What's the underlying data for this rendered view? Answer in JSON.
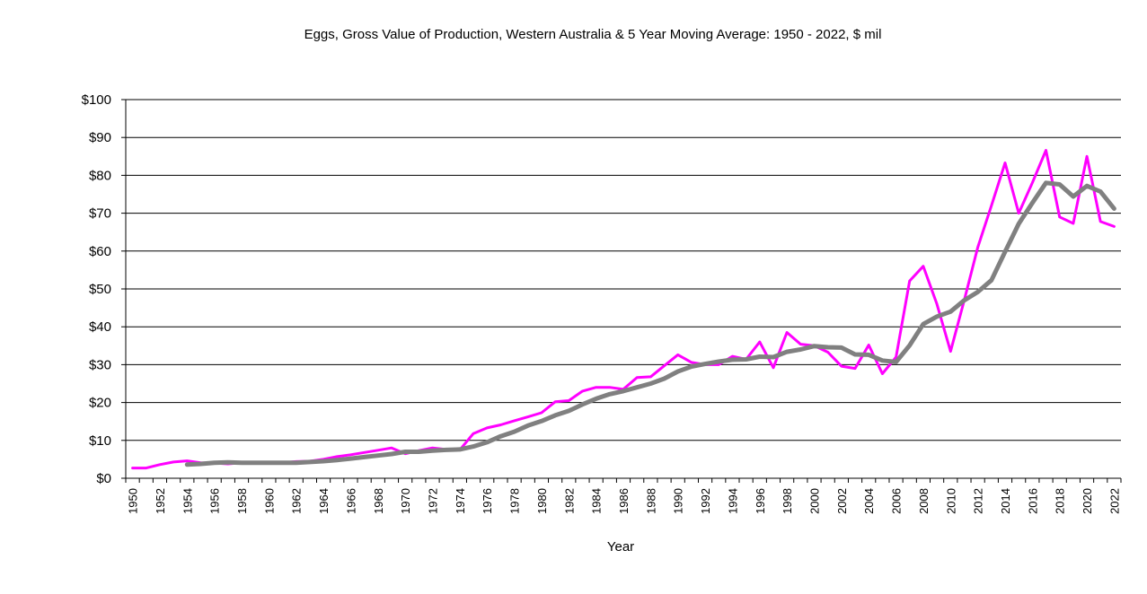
{
  "chart_data": {
    "type": "line",
    "title": "Eggs, Gross Value of Production, Western Australia & 5 Year Moving Average: 1950 - 2022, $ mil",
    "xlabel": "Year",
    "ylabel": "",
    "ylim": [
      0,
      100
    ],
    "yticks": [
      0,
      10,
      20,
      30,
      40,
      50,
      60,
      70,
      80,
      90,
      100
    ],
    "ytick_labels": [
      "$0",
      "$10",
      "$20",
      "$30",
      "$40",
      "$50",
      "$60",
      "$70",
      "$80",
      "$90",
      "$100"
    ],
    "xlim": [
      1950,
      2022
    ],
    "xtick_labels": [
      "1950",
      "1952",
      "1954",
      "1956",
      "1958",
      "1960",
      "1962",
      "1964",
      "1966",
      "1968",
      "1970",
      "1972",
      "1974",
      "1976",
      "1978",
      "1980",
      "1982",
      "1984",
      "1986",
      "1988",
      "1990",
      "1992",
      "1994",
      "1996",
      "1998",
      "2000",
      "2002",
      "2004",
      "2006",
      "2008",
      "2010",
      "2012",
      "2014",
      "2016",
      "2018",
      "2020",
      "2022"
    ],
    "grid": true,
    "legend": "none",
    "series": [
      {
        "name": "Gross Value of Production",
        "color": "#ff00ff",
        "x": [
          1950,
          1951,
          1952,
          1953,
          1954,
          1955,
          1956,
          1957,
          1958,
          1959,
          1960,
          1961,
          1962,
          1963,
          1964,
          1965,
          1966,
          1967,
          1968,
          1969,
          1970,
          1971,
          1972,
          1973,
          1974,
          1975,
          1976,
          1977,
          1978,
          1979,
          1980,
          1981,
          1982,
          1983,
          1984,
          1985,
          1986,
          1987,
          1988,
          1989,
          1990,
          1991,
          1992,
          1993,
          1994,
          1995,
          1996,
          1997,
          1998,
          1999,
          2000,
          2001,
          2002,
          2003,
          2004,
          2005,
          2006,
          2007,
          2008,
          2009,
          2010,
          2011,
          2012,
          2013,
          2014,
          2015,
          2016,
          2017,
          2018,
          2019,
          2020,
          2021,
          2022
        ],
        "values": [
          2.7,
          2.7,
          3.6,
          4.3,
          4.6,
          4.1,
          4.0,
          3.8,
          4.1,
          4.1,
          4.1,
          4.1,
          4.4,
          4.5,
          5.0,
          5.7,
          6.2,
          6.8,
          7.4,
          8.0,
          6.5,
          7.3,
          8.0,
          7.6,
          7.5,
          11.8,
          13.3,
          14.1,
          15.2,
          16.2,
          17.3,
          20.2,
          20.5,
          23.0,
          24.0,
          24.0,
          23.5,
          26.6,
          26.8,
          29.7,
          32.6,
          30.6,
          30.0,
          30.0,
          32.2,
          31.4,
          36.0,
          29.2,
          38.5,
          35.4,
          35.0,
          33.3,
          29.6,
          29.0,
          35.2,
          27.6,
          32.0,
          52.1,
          56.0,
          46.0,
          33.5,
          47.0,
          61.0,
          72.0,
          83.3,
          70.0,
          78.0,
          86.6,
          69.0,
          67.3,
          85.0,
          67.8,
          66.5
        ]
      },
      {
        "name": "5 Year Moving Average",
        "color": "#808080",
        "x": [
          1954,
          1955,
          1956,
          1957,
          1958,
          1959,
          1960,
          1961,
          1962,
          1963,
          1964,
          1965,
          1966,
          1967,
          1968,
          1969,
          1970,
          1971,
          1972,
          1973,
          1974,
          1975,
          1976,
          1977,
          1978,
          1979,
          1980,
          1981,
          1982,
          1983,
          1984,
          1985,
          1986,
          1987,
          1988,
          1989,
          1990,
          1991,
          1992,
          1993,
          1994,
          1995,
          1996,
          1997,
          1998,
          1999,
          2000,
          2001,
          2002,
          2003,
          2004,
          2005,
          2006,
          2007,
          2008,
          2009,
          2010,
          2011,
          2012,
          2013,
          2014,
          2015,
          2016,
          2017,
          2018,
          2019,
          2020,
          2021,
          2022
        ],
        "values": [
          3.6,
          3.8,
          4.1,
          4.2,
          4.1,
          4.1,
          4.1,
          4.1,
          4.1,
          4.3,
          4.5,
          4.8,
          5.2,
          5.6,
          6.0,
          6.4,
          7.0,
          7.0,
          7.3,
          7.5,
          7.6,
          8.4,
          9.5,
          11.1,
          12.3,
          13.9,
          15.1,
          16.6,
          17.8,
          19.5,
          21.0,
          22.2,
          23.0,
          24.0,
          25.0,
          26.3,
          28.2,
          29.5,
          30.2,
          30.8,
          31.3,
          31.4,
          32.1,
          32.0,
          33.4,
          34.0,
          34.9,
          34.6,
          34.5,
          32.7,
          32.6,
          31.1,
          30.7,
          35.1,
          40.7,
          42.7,
          44.0,
          47.0,
          49.2,
          52.3,
          59.8,
          67.2,
          72.7,
          78.0,
          77.6,
          74.4,
          77.2,
          75.7,
          71.2
        ]
      }
    ]
  }
}
